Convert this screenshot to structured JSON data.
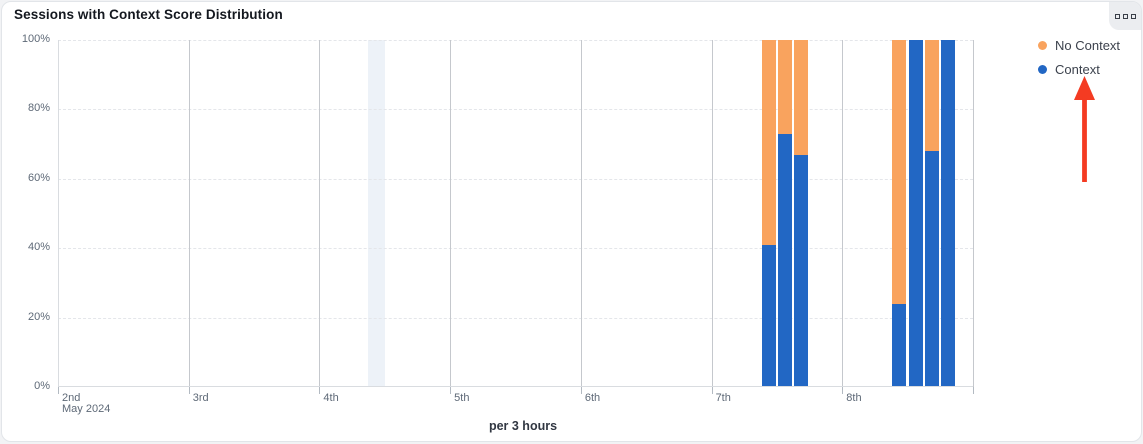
{
  "card": {
    "title": "Sessions with Context Score Distribution",
    "menu_button": {
      "icon": "three-squares-menu-icon"
    }
  },
  "chart_data": {
    "type": "bar",
    "stacked": true,
    "unit": "percent",
    "title": "Sessions with Context Score Distribution",
    "xlabel": "per 3 hours",
    "x_sub_label": "May 2024",
    "ylim": [
      0,
      100
    ],
    "y_ticks": [
      "100%",
      "80%",
      "60%",
      "40%",
      "20%",
      "0%"
    ],
    "x_ticks": [
      "2nd",
      "3rd",
      "4th",
      "5th",
      "6th",
      "7th",
      "8th"
    ],
    "slots_per_day": 8,
    "grid": {
      "horizontal": "dashed",
      "vertical": "solid"
    },
    "legend_position": "right",
    "legend": [
      {
        "label": "No Context",
        "color": "#f9a35e"
      },
      {
        "label": "Context",
        "color": "#2267c4"
      }
    ],
    "bars": [
      {
        "day": "7th",
        "slot": 3,
        "context_pct": 41,
        "no_context_pct": 59
      },
      {
        "day": "7th",
        "slot": 4,
        "context_pct": 73,
        "no_context_pct": 27
      },
      {
        "day": "7th",
        "slot": 5,
        "context_pct": 67,
        "no_context_pct": 33
      },
      {
        "day": "8th",
        "slot": 3,
        "context_pct": 24,
        "no_context_pct": 76
      },
      {
        "day": "8th",
        "slot": 4,
        "context_pct": 100,
        "no_context_pct": 0
      },
      {
        "day": "8th",
        "slot": 5,
        "context_pct": 68,
        "no_context_pct": 32
      },
      {
        "day": "8th",
        "slot": 6,
        "context_pct": 100,
        "no_context_pct": 0
      }
    ],
    "highlight_band": {
      "day": "4th",
      "slot": 3,
      "color": "#edf2f8"
    }
  },
  "annotation": {
    "type": "arrow-up",
    "color": "#f43b22",
    "points_to": "Context legend item"
  }
}
